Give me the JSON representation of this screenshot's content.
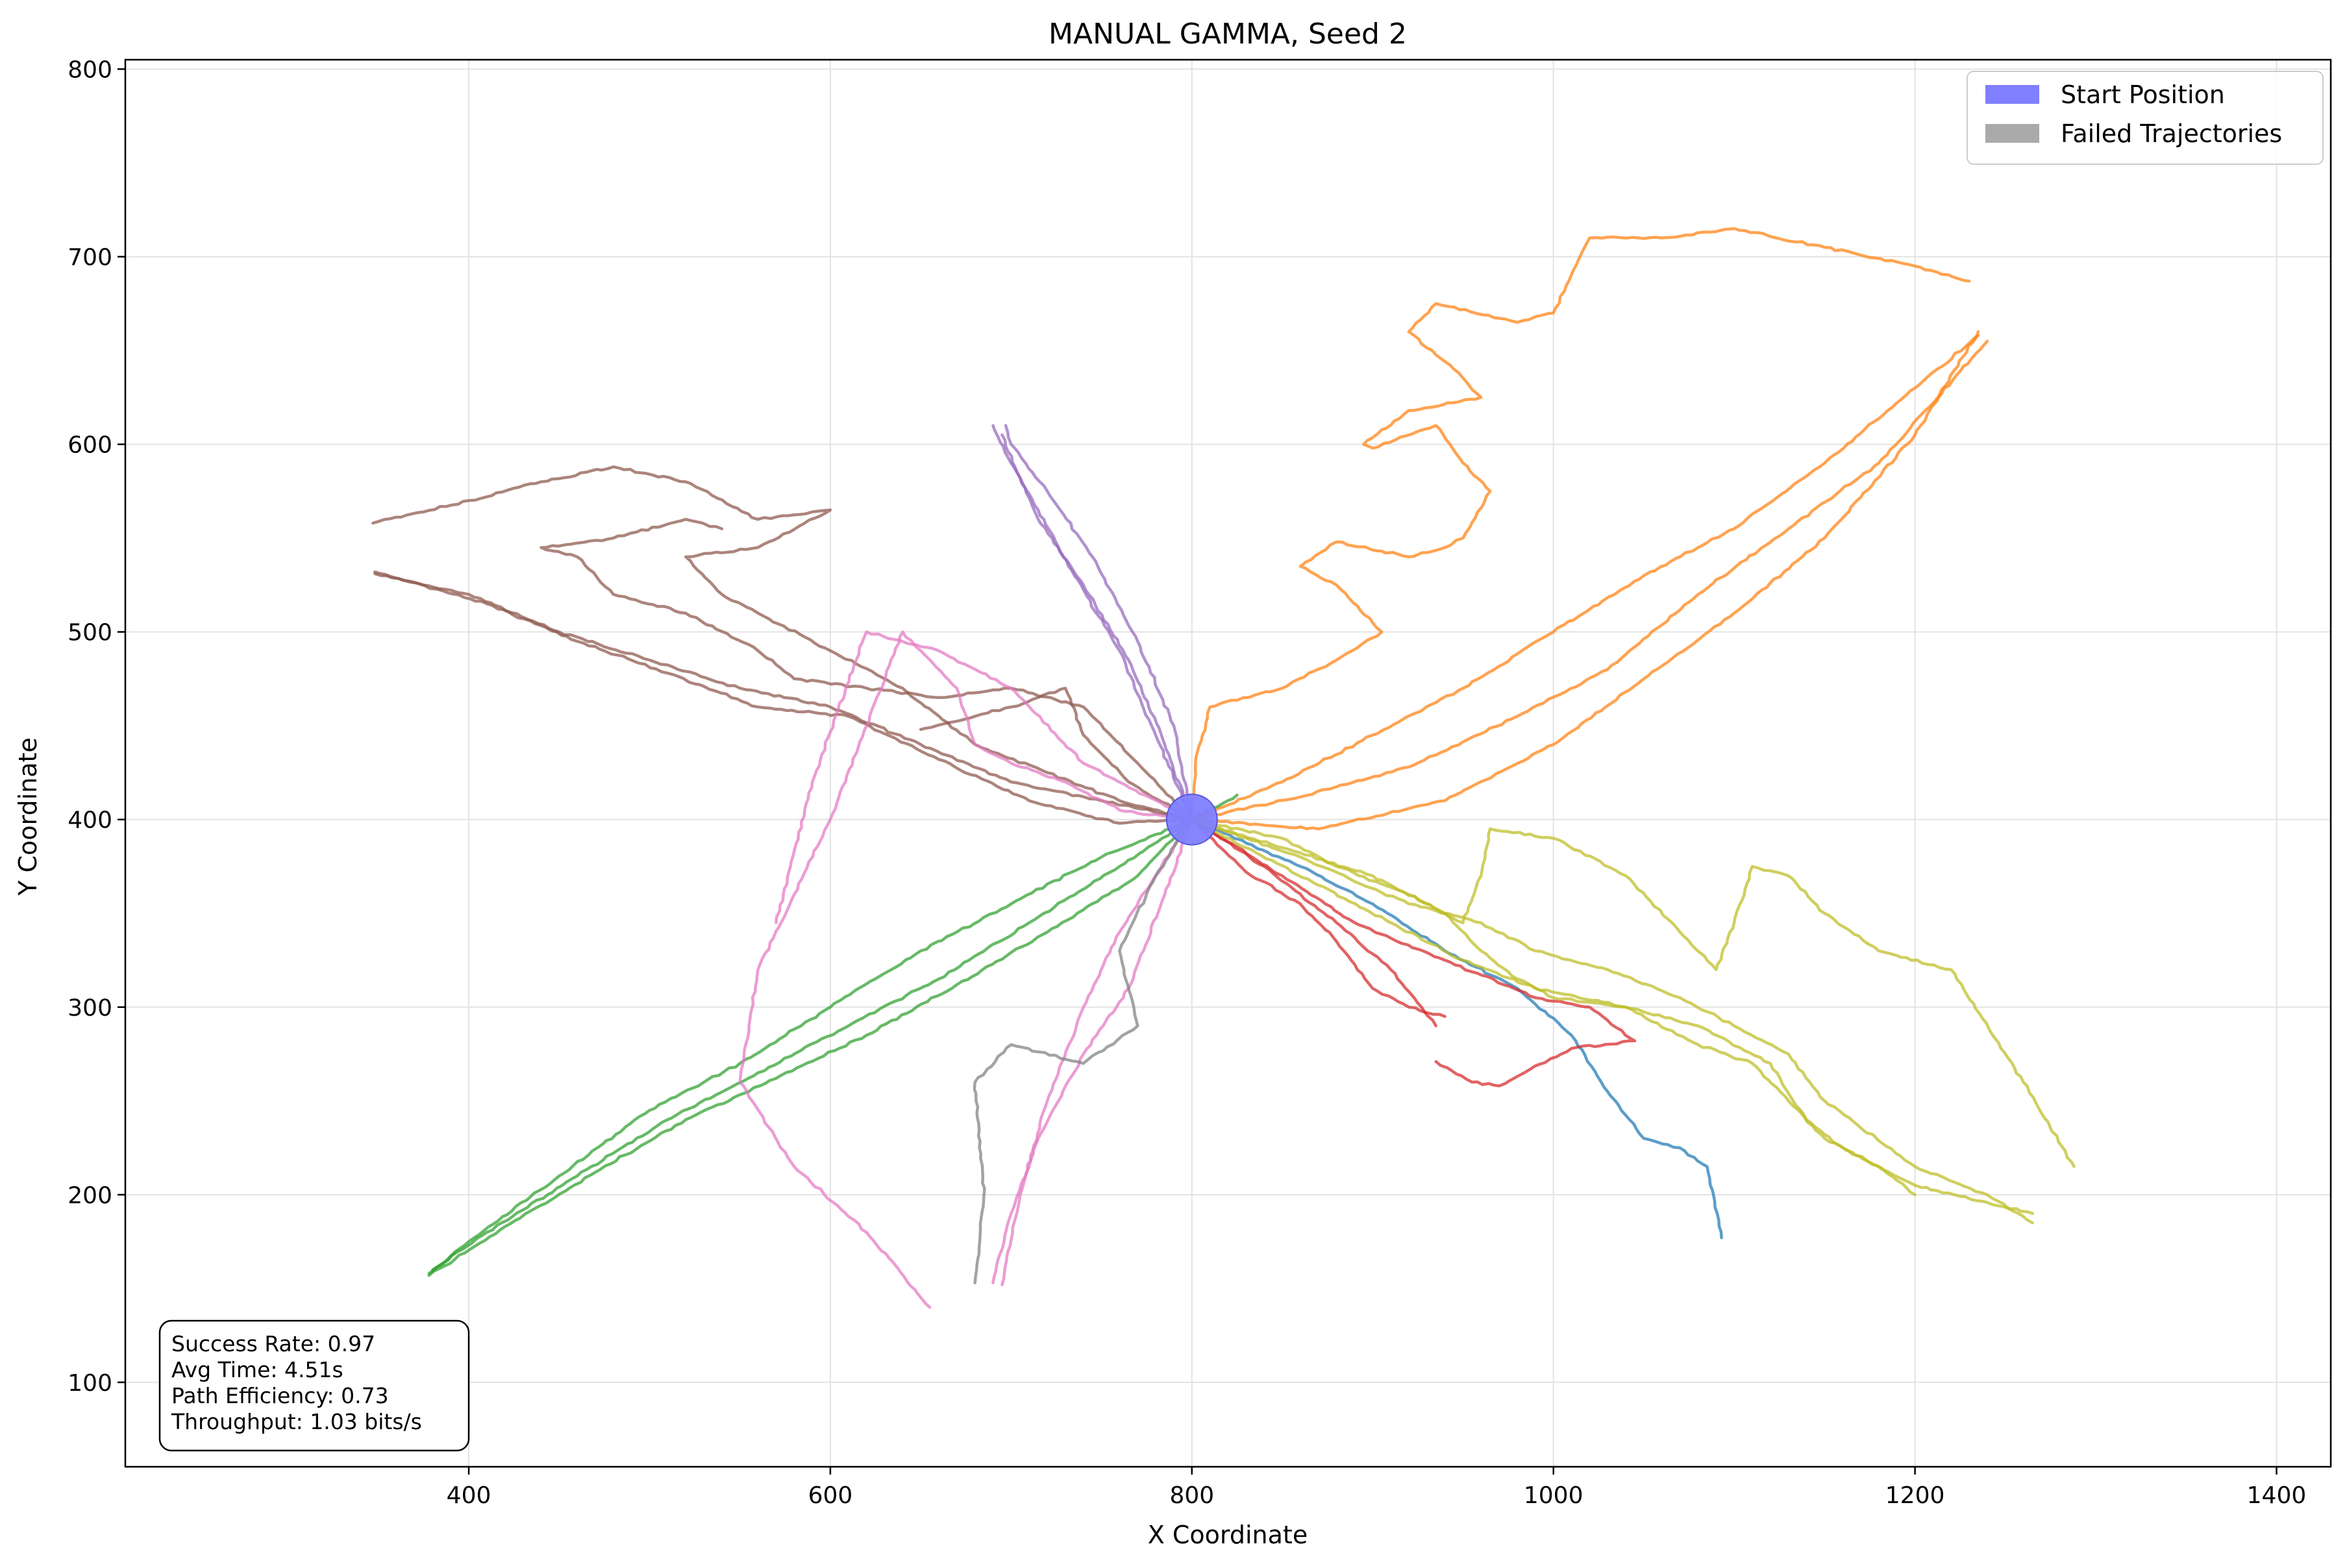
{
  "chart_data": {
    "type": "line",
    "title": "MANUAL GAMMA, Seed 2",
    "xlabel": "X Coordinate",
    "ylabel": "Y Coordinate",
    "xlim": [
      210,
      1430
    ],
    "ylim": [
      55,
      805
    ],
    "xticks": [
      400,
      600,
      800,
      1000,
      1200,
      1400
    ],
    "yticks": [
      100,
      200,
      300,
      400,
      500,
      600,
      700,
      800
    ],
    "grid": true,
    "legend": {
      "placement": "top-right",
      "entries": [
        {
          "label": "Start Position",
          "color": "#7f7fff"
        },
        {
          "label": "Failed Trajectories",
          "color": "#aaaaaa"
        }
      ]
    },
    "start_position": {
      "x": 800,
      "y": 400,
      "color": "#7f7fff"
    },
    "stats": [
      "Success Rate: 0.97",
      "Avg Time: 4.51s",
      "Path Efficiency: 0.73",
      "Throughput: 1.03 bits/s"
    ],
    "series": [
      {
        "color": "#1f77b4",
        "x": [
          800,
          860,
          900,
          940,
          980,
          1010,
          1030,
          1050,
          1070,
          1085,
          1093
        ],
        "y": [
          400,
          375,
          355,
          330,
          310,
          285,
          255,
          230,
          225,
          215,
          177
        ]
      },
      {
        "color": "#ff7f0e",
        "x": [
          800,
          802,
          810,
          850,
          880,
          905,
          880,
          860,
          880,
          920,
          940,
          950,
          965,
          950,
          935,
          900,
          895,
          920,
          960,
          945,
          920,
          935,
          980,
          1000,
          1020,
          1060,
          1100,
          1150,
          1200,
          1230
        ],
        "y": [
          400,
          430,
          460,
          470,
          485,
          500,
          525,
          535,
          548,
          540,
          545,
          550,
          575,
          590,
          610,
          598,
          600,
          618,
          625,
          640,
          660,
          675,
          665,
          670,
          710,
          710,
          715,
          705,
          695,
          687
        ]
      },
      {
        "color": "#ff7f0e",
        "x": [
          800,
          850,
          900,
          950,
          1000,
          1050,
          1100,
          1150,
          1200,
          1235
        ],
        "y": [
          400,
          420,
          445,
          470,
          500,
          530,
          555,
          590,
          630,
          658
        ]
      },
      {
        "color": "#ff7f0e",
        "x": [
          800,
          860,
          920,
          980,
          1030,
          1080,
          1130,
          1180,
          1240
        ],
        "y": [
          400,
          412,
          428,
          455,
          480,
          520,
          555,
          590,
          655
        ]
      },
      {
        "color": "#ff7f0e",
        "x": [
          800,
          870,
          940,
          1000,
          1050,
          1100,
          1150,
          1200,
          1235
        ],
        "y": [
          400,
          395,
          410,
          440,
          475,
          510,
          550,
          605,
          660
        ]
      },
      {
        "color": "#2ca02c",
        "x": [
          800,
          750,
          700,
          650,
          600,
          550,
          500,
          450,
          400,
          378
        ],
        "y": [
          400,
          380,
          355,
          330,
          300,
          270,
          245,
          210,
          175,
          158
        ]
      },
      {
        "color": "#2ca02c",
        "x": [
          800,
          760,
          710,
          660,
          610,
          560,
          510,
          460,
          410,
          380
        ],
        "y": [
          400,
          375,
          345,
          315,
          290,
          265,
          240,
          210,
          180,
          160
        ]
      },
      {
        "color": "#2ca02c",
        "x": [
          800,
          770,
          720,
          670,
          620,
          570,
          520,
          470,
          420,
          378
        ],
        "y": [
          400,
          370,
          340,
          312,
          285,
          262,
          240,
          212,
          183,
          157
        ]
      },
      {
        "color": "#2ca02c",
        "x": [
          800,
          825
        ],
        "y": [
          400,
          413
        ]
      },
      {
        "color": "#d62728",
        "x": [
          800,
          840,
          880,
          910,
          935
        ],
        "y": [
          400,
          375,
          345,
          320,
          290
        ]
      },
      {
        "color": "#d62728",
        "x": [
          800,
          850,
          890,
          940,
          990,
          1020,
          1045,
          1010,
          970,
          955,
          935
        ],
        "y": [
          400,
          370,
          345,
          325,
          305,
          300,
          282,
          278,
          258,
          260,
          271
        ]
      },
      {
        "color": "#d62728",
        "x": [
          800,
          830,
          860,
          880,
          900,
          920,
          940
        ],
        "y": [
          400,
          372,
          355,
          335,
          310,
          300,
          295
        ]
      },
      {
        "color": "#9467bd",
        "x": [
          800,
          780,
          760,
          735,
          715,
          700,
          690
        ],
        "y": [
          400,
          445,
          490,
          530,
          565,
          590,
          610
        ]
      },
      {
        "color": "#9467bd",
        "x": [
          800,
          790,
          770,
          745,
          720,
          700,
          697
        ],
        "y": [
          400,
          450,
          495,
          540,
          575,
          600,
          610
        ]
      },
      {
        "color": "#9467bd",
        "x": [
          800,
          785,
          765,
          740,
          715,
          695
        ],
        "y": [
          400,
          440,
          485,
          525,
          560,
          605
        ]
      },
      {
        "color": "#8c564b",
        "x": [
          800,
          750,
          700,
          650,
          600,
          550,
          500,
          450,
          400,
          348
        ],
        "y": [
          400,
          410,
          420,
          440,
          460,
          470,
          485,
          500,
          520,
          531
        ]
      },
      {
        "color": "#8c564b",
        "x": [
          800,
          760,
          710,
          660,
          610,
          560,
          510,
          460,
          410,
          348
        ],
        "y": [
          400,
          398,
          410,
          432,
          455,
          460,
          478,
          495,
          515,
          532
        ]
      },
      {
        "color": "#8c564b",
        "x": [
          800,
          760,
          720,
          680,
          640,
          600,
          560,
          540,
          520,
          560,
          600,
          560,
          520,
          480,
          440,
          400,
          347
        ],
        "y": [
          400,
          410,
          425,
          440,
          470,
          490,
          510,
          520,
          540,
          545,
          565,
          560,
          580,
          588,
          580,
          570,
          558
        ]
      },
      {
        "color": "#8c564b",
        "x": [
          800,
          770,
          740,
          700,
          660,
          620,
          580,
          560,
          520,
          480,
          460,
          440,
          480,
          520,
          540
        ],
        "y": [
          400,
          430,
          460,
          470,
          465,
          470,
          475,
          490,
          510,
          520,
          540,
          545,
          550,
          560,
          555
        ]
      },
      {
        "color": "#8c564b",
        "x": [
          800,
          765,
          740,
          730,
          700,
          680,
          650
        ],
        "y": [
          400,
          420,
          445,
          470,
          460,
          455,
          448
        ]
      },
      {
        "color": "#e377c2",
        "x": [
          800,
          760,
          730,
          700,
          680,
          670,
          650,
          640,
          620,
          600,
          580,
          560,
          550,
          580,
          620,
          655
        ],
        "y": [
          400,
          405,
          420,
          430,
          440,
          470,
          490,
          500,
          450,
          400,
          360,
          320,
          260,
          215,
          180,
          140
        ]
      },
      {
        "color": "#e377c2",
        "x": [
          800,
          780,
          760,
          740,
          720,
          705,
          695
        ],
        "y": [
          400,
          370,
          340,
          300,
          250,
          200,
          152
        ]
      },
      {
        "color": "#e377c2",
        "x": [
          800,
          785,
          765,
          740,
          715,
          700,
          690
        ],
        "y": [
          400,
          360,
          310,
          275,
          230,
          190,
          153
        ]
      },
      {
        "color": "#e377c2",
        "x": [
          800,
          740,
          700,
          660,
          620,
          590,
          570
        ],
        "y": [
          400,
          430,
          470,
          490,
          500,
          420,
          345
        ]
      },
      {
        "color": "#7f7f7f",
        "x": [
          800,
          780,
          760,
          770,
          740,
          700,
          680,
          685,
          680
        ],
        "y": [
          400,
          370,
          330,
          290,
          270,
          280,
          260,
          200,
          153
        ]
      },
      {
        "color": "#bcbd22",
        "x": [
          800,
          850,
          900,
          940,
          960,
          980,
          1000,
          1040,
          1080,
          1120,
          1140,
          1160,
          1180,
          1200
        ],
        "y": [
          400,
          385,
          370,
          350,
          330,
          315,
          305,
          300,
          290,
          270,
          240,
          225,
          215,
          200
        ]
      },
      {
        "color": "#bcbd22",
        "x": [
          800,
          860,
          920,
          960,
          990,
          1030,
          1070,
          1100,
          1130,
          1150,
          1200,
          1240,
          1265
        ],
        "y": [
          400,
          380,
          355,
          345,
          330,
          320,
          305,
          290,
          275,
          250,
          215,
          200,
          185
        ]
      },
      {
        "color": "#bcbd22",
        "x": [
          800,
          850,
          880,
          920,
          950,
          960,
          965,
          1000,
          1040,
          1070,
          1090,
          1100,
          1110,
          1130,
          1150,
          1180,
          1220,
          1260,
          1288
        ],
        "y": [
          400,
          390,
          375,
          360,
          345,
          370,
          395,
          390,
          370,
          340,
          320,
          345,
          375,
          370,
          350,
          330,
          320,
          260,
          215
        ]
      },
      {
        "color": "#bcbd22",
        "x": [
          800,
          830,
          870,
          910,
          950,
          990,
          1040,
          1080,
          1110,
          1130,
          1150,
          1200,
          1265
        ],
        "y": [
          400,
          385,
          365,
          345,
          325,
          310,
          300,
          280,
          270,
          250,
          230,
          205,
          190
        ]
      }
    ]
  }
}
